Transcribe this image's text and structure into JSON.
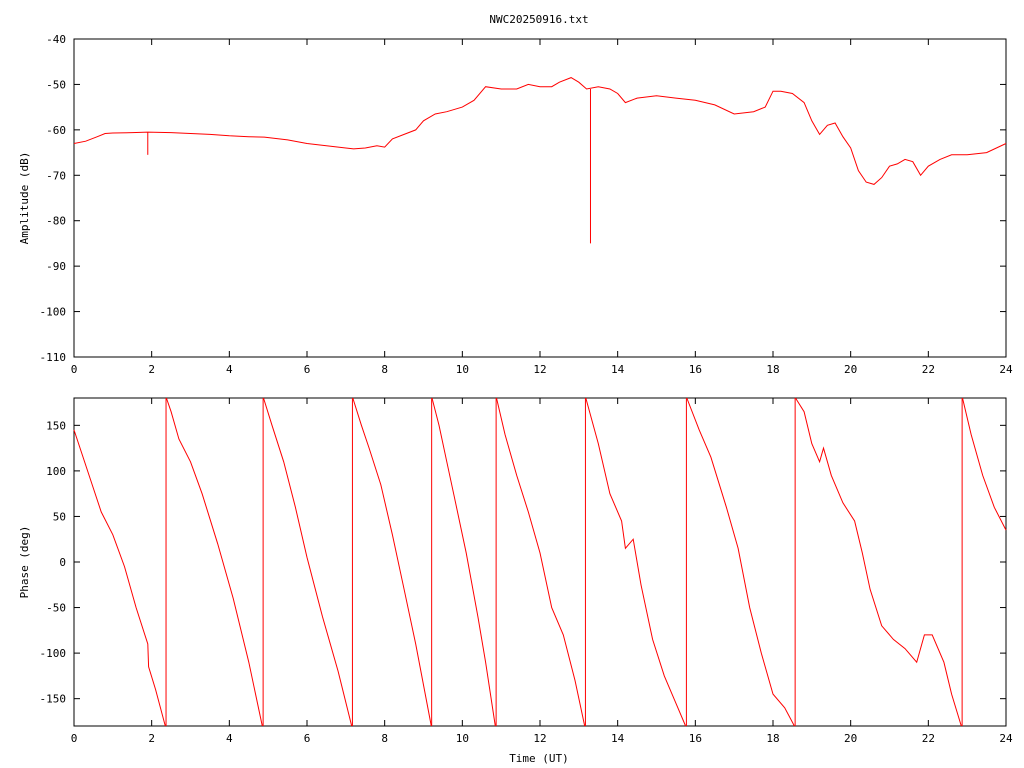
{
  "title": "NWC20250916.txt",
  "colors": {
    "trace": "#ff0000",
    "axis": "#000000",
    "grid": "#000000",
    "background": "#ffffff"
  },
  "chart_data": [
    {
      "type": "line",
      "ylabel": "Amplitude (dB)",
      "xlim": [
        0,
        24
      ],
      "ylim": [
        -110,
        -40
      ],
      "xticks": [
        "0",
        "2",
        "4",
        "6",
        "8",
        "10",
        "12",
        "14",
        "16",
        "18",
        "20",
        "22",
        "24"
      ],
      "yticks": [
        "-40",
        "-50",
        "-60",
        "-70",
        "-80",
        "-90",
        "-100",
        "-110"
      ],
      "series": [
        {
          "x": [
            0,
            0.3,
            0.6,
            0.8,
            1.0,
            1.5,
            1.9,
            2.5,
            3.0,
            3.5,
            4.0,
            4.5,
            4.9,
            5.5,
            6.0,
            6.5,
            7.0,
            7.2,
            7.5,
            7.8,
            8.0,
            8.2,
            8.5,
            8.8,
            9.0,
            9.3,
            9.6,
            10.0,
            10.3,
            10.6,
            11.0,
            11.4,
            11.7,
            12.0,
            12.3,
            12.5,
            12.8,
            13.0,
            13.2,
            13.5,
            13.8,
            14.0,
            14.2,
            14.5,
            15.0,
            15.5,
            16.0,
            16.5,
            17.0,
            17.5,
            17.8,
            18.0,
            18.2,
            18.5,
            18.8,
            19.0,
            19.2,
            19.4,
            19.6,
            19.8,
            20.0,
            20.2,
            20.4,
            20.6,
            20.8,
            21.0,
            21.2,
            21.4,
            21.6,
            21.8,
            22.0,
            22.3,
            22.6,
            23.0,
            23.5,
            24.0
          ],
          "y": [
            -63,
            -62.5,
            -61.5,
            -60.8,
            -60.7,
            -60.6,
            -60.5,
            -60.6,
            -60.8,
            -61.0,
            -61.3,
            -61.5,
            -61.6,
            -62.2,
            -63,
            -63.5,
            -64,
            -64.2,
            -64,
            -63.5,
            -63.8,
            -62,
            -61,
            -60,
            -58,
            -56.5,
            -56,
            -55,
            -53.5,
            -50.5,
            -51,
            -51,
            -50,
            -50.5,
            -50.5,
            -49.5,
            -48.5,
            -49.5,
            -51,
            -50.5,
            -51,
            -52,
            -54,
            -53,
            -52.5,
            -53,
            -53.5,
            -54.5,
            -56.5,
            -56,
            -55,
            -51.5,
            -51.5,
            -52,
            -54,
            -58,
            -61,
            -59,
            -58.5,
            -61.5,
            -64,
            -69,
            -71.5,
            -72,
            -70.5,
            -68,
            -67.5,
            -66.5,
            -67,
            -70,
            -68,
            -66.5,
            -65.5,
            -65.5,
            -65,
            -63
          ]
        }
      ],
      "spikes": [
        {
          "x": 1.9,
          "from": -60.5,
          "to": -65.5
        },
        {
          "x": 13.3,
          "from": -51,
          "to": -85
        }
      ]
    },
    {
      "type": "line",
      "xlabel": "Time (UT)",
      "ylabel": "Phase (deg)",
      "xlim": [
        0,
        24
      ],
      "ylim": [
        -180,
        180
      ],
      "xticks": [
        "0",
        "2",
        "4",
        "6",
        "8",
        "10",
        "12",
        "14",
        "16",
        "18",
        "20",
        "22",
        "24"
      ],
      "yticks": [
        "150",
        "100",
        "50",
        "0",
        "-50",
        "-100",
        "-150"
      ],
      "segments": [
        {
          "x": [
            0,
            0.35,
            0.7,
            1.0,
            1.3,
            1.6,
            1.9,
            1.92,
            2.1,
            2.35
          ],
          "y": [
            145,
            100,
            55,
            30,
            -5,
            -50,
            -90,
            -115,
            -140,
            -180
          ]
        },
        {
          "x": [
            2.38,
            2.5,
            2.7,
            3.0,
            3.3,
            3.7,
            4.1,
            4.5,
            4.85
          ],
          "y": [
            180,
            165,
            135,
            110,
            75,
            20,
            -40,
            -110,
            -180
          ]
        },
        {
          "x": [
            4.88,
            5.1,
            5.4,
            5.7,
            6.0,
            6.4,
            6.8,
            7.15
          ],
          "y": [
            180,
            150,
            110,
            60,
            5,
            -60,
            -120,
            -180
          ]
        },
        {
          "x": [
            7.18,
            7.4,
            7.6,
            7.9,
            8.2,
            8.5,
            8.8,
            9.2
          ],
          "y": [
            180,
            150,
            125,
            85,
            30,
            -30,
            -90,
            -180
          ]
        },
        {
          "x": [
            9.22,
            9.4,
            9.6,
            9.8,
            10.1,
            10.4,
            10.6,
            10.85
          ],
          "y": [
            180,
            150,
            110,
            70,
            10,
            -60,
            -110,
            -180
          ]
        },
        {
          "x": [
            10.88,
            11.1,
            11.4,
            11.7,
            12.0,
            12.3,
            12.6,
            12.9,
            13.15
          ],
          "y": [
            180,
            140,
            95,
            55,
            10,
            -50,
            -80,
            -130,
            -180
          ]
        },
        {
          "x": [
            13.18,
            13.5,
            13.8,
            14.1,
            14.2,
            14.4,
            14.6,
            14.9,
            15.2,
            15.5,
            15.75
          ],
          "y": [
            180,
            130,
            75,
            45,
            15,
            25,
            -25,
            -85,
            -125,
            -155,
            -180
          ]
        },
        {
          "x": [
            15.78,
            16.1,
            16.4,
            16.8,
            17.1,
            17.4,
            17.7,
            18.0,
            18.3,
            18.55
          ],
          "y": [
            180,
            145,
            115,
            60,
            15,
            -50,
            -100,
            -145,
            -160,
            -180
          ]
        },
        {
          "x": [
            18.58,
            18.8,
            19.0,
            19.2,
            19.3,
            19.5,
            19.8,
            20.1,
            20.3,
            20.5,
            20.8,
            21.1,
            21.4,
            21.7,
            21.9,
            22.1,
            22.4,
            22.6,
            22.85
          ],
          "y": [
            180,
            165,
            130,
            110,
            125,
            95,
            65,
            45,
            10,
            -30,
            -70,
            -85,
            -95,
            -110,
            -80,
            -80,
            -110,
            -145,
            -180
          ]
        },
        {
          "x": [
            22.88,
            23.1,
            23.4,
            23.7,
            24.0
          ],
          "y": [
            180,
            140,
            95,
            60,
            35
          ]
        }
      ],
      "wraps": [
        2.37,
        4.87,
        7.17,
        9.21,
        10.87,
        13.17,
        15.77,
        18.57,
        22.87
      ]
    }
  ]
}
